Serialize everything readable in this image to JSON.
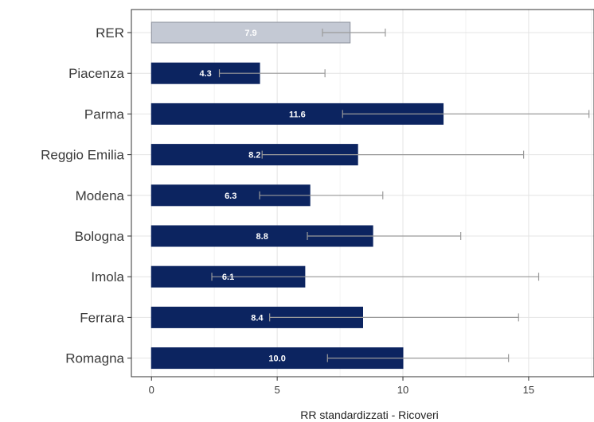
{
  "chart_data": {
    "type": "bar",
    "orientation": "horizontal",
    "categories": [
      "RER",
      "Piacenza",
      "Parma",
      "Reggio Emilia",
      "Modena",
      "Bologna",
      "Imola",
      "Ferrara",
      "Romagna"
    ],
    "values": [
      7.9,
      4.3,
      11.6,
      8.2,
      6.3,
      8.8,
      6.1,
      8.4,
      10.0
    ],
    "value_labels": [
      "7.9",
      "4.3",
      "11.6",
      "8.2",
      "6.3",
      "8.8",
      "6.1",
      "8.4",
      "10.0"
    ],
    "ci_lower": [
      6.8,
      2.7,
      7.6,
      4.4,
      4.3,
      6.2,
      2.4,
      4.7,
      7.0
    ],
    "ci_upper": [
      9.3,
      6.9,
      17.4,
      14.8,
      9.2,
      12.3,
      15.4,
      14.6,
      14.2
    ],
    "xlabel": "RR standardizzati - Ricoveri",
    "ylabel": "",
    "title": "",
    "xlim": [
      -0.8,
      17.6
    ],
    "x_ticks": [
      0,
      5,
      10,
      15
    ],
    "x_tick_labels": [
      "0",
      "5",
      "10",
      "15"
    ],
    "grid": true,
    "colors": {
      "highlight_bar": "#c4c9d4",
      "bar": "#0c2460",
      "error_bar": "#9a9a9a",
      "grid_major": "#e4e4e4",
      "grid_minor": "#f2f2f2",
      "frame": "#333333"
    }
  }
}
